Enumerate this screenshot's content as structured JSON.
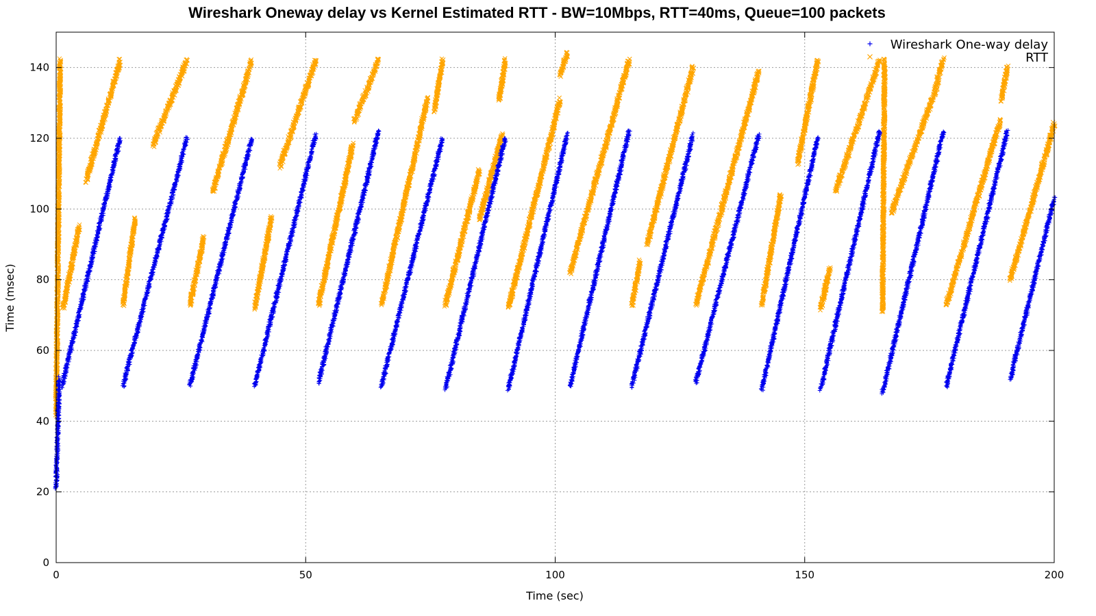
{
  "chart_data": {
    "type": "scatter",
    "title": "Wireshark Oneway delay vs Kernel Estimated RTT - BW=10Mbps, RTT=40ms, Queue=100 packets",
    "xlabel": "Time (sec)",
    "ylabel": "Time (msec)",
    "xlim": [
      0,
      200
    ],
    "ylim": [
      0,
      150
    ],
    "x_ticks": [
      0,
      50,
      100,
      150,
      200
    ],
    "y_ticks": [
      0,
      20,
      40,
      60,
      80,
      100,
      120,
      140
    ],
    "grid": true,
    "legend_position": "top-right",
    "series": [
      {
        "name": "Wireshark One-way delay",
        "marker": "+",
        "color": "#0000ee",
        "segments": [
          {
            "x0": 0.0,
            "y0": 21,
            "x1": 0.6,
            "y1": 52
          },
          {
            "x0": 1.2,
            "y0": 50,
            "x1": 12.8,
            "y1": 120
          },
          {
            "x0": 13.4,
            "y0": 50,
            "x1": 26.2,
            "y1": 120
          },
          {
            "x0": 26.8,
            "y0": 50,
            "x1": 39.2,
            "y1": 120
          },
          {
            "x0": 39.8,
            "y0": 50,
            "x1": 52.0,
            "y1": 121
          },
          {
            "x0": 52.6,
            "y0": 51,
            "x1": 64.6,
            "y1": 122
          },
          {
            "x0": 65.2,
            "y0": 50,
            "x1": 77.4,
            "y1": 120
          },
          {
            "x0": 78.0,
            "y0": 49,
            "x1": 90.0,
            "y1": 120
          },
          {
            "x0": 90.6,
            "y0": 49,
            "x1": 102.4,
            "y1": 121
          },
          {
            "x0": 103.0,
            "y0": 50,
            "x1": 114.8,
            "y1": 122
          },
          {
            "x0": 115.4,
            "y0": 50,
            "x1": 127.6,
            "y1": 121
          },
          {
            "x0": 128.2,
            "y0": 51,
            "x1": 140.8,
            "y1": 121
          },
          {
            "x0": 141.4,
            "y0": 49,
            "x1": 152.6,
            "y1": 120
          },
          {
            "x0": 153.2,
            "y0": 49,
            "x1": 165.0,
            "y1": 122
          },
          {
            "x0": 165.6,
            "y0": 48,
            "x1": 177.8,
            "y1": 122
          },
          {
            "x0": 178.4,
            "y0": 50,
            "x1": 190.6,
            "y1": 122
          },
          {
            "x0": 191.2,
            "y0": 52,
            "x1": 200.0,
            "y1": 103
          }
        ]
      },
      {
        "name": "RTT",
        "marker": "x",
        "color": "#ffa500",
        "segments": [
          {
            "x0": 0.0,
            "y0": 42,
            "x1": 0.8,
            "y1": 142
          },
          {
            "x0": 1.4,
            "y0": 72,
            "x1": 4.6,
            "y1": 95
          },
          {
            "x0": 6.0,
            "y0": 108,
            "x1": 12.8,
            "y1": 142
          },
          {
            "x0": 13.4,
            "y0": 73,
            "x1": 15.8,
            "y1": 97
          },
          {
            "x0": 19.4,
            "y0": 118,
            "x1": 26.2,
            "y1": 142
          },
          {
            "x0": 26.8,
            "y0": 73,
            "x1": 29.6,
            "y1": 92
          },
          {
            "x0": 31.4,
            "y0": 105,
            "x1": 39.2,
            "y1": 142
          },
          {
            "x0": 39.8,
            "y0": 72,
            "x1": 43.2,
            "y1": 98
          },
          {
            "x0": 44.8,
            "y0": 112,
            "x1": 52.0,
            "y1": 142
          },
          {
            "x0": 52.6,
            "y0": 73,
            "x1": 59.4,
            "y1": 118
          },
          {
            "x0": 59.8,
            "y0": 125,
            "x1": 64.6,
            "y1": 142
          },
          {
            "x0": 65.2,
            "y0": 73,
            "x1": 74.4,
            "y1": 131
          },
          {
            "x0": 75.8,
            "y0": 128,
            "x1": 77.4,
            "y1": 142
          },
          {
            "x0": 78.0,
            "y0": 73,
            "x1": 84.8,
            "y1": 111
          },
          {
            "x0": 84.8,
            "y0": 97,
            "x1": 89.4,
            "y1": 121
          },
          {
            "x0": 88.8,
            "y0": 131,
            "x1": 90.0,
            "y1": 142
          },
          {
            "x0": 90.6,
            "y0": 72,
            "x1": 101.0,
            "y1": 131
          },
          {
            "x0": 101.0,
            "y0": 138,
            "x1": 102.4,
            "y1": 144
          },
          {
            "x0": 103.0,
            "y0": 82,
            "x1": 114.8,
            "y1": 142
          },
          {
            "x0": 115.4,
            "y0": 73,
            "x1": 117.0,
            "y1": 85
          },
          {
            "x0": 118.4,
            "y0": 90,
            "x1": 127.6,
            "y1": 140
          },
          {
            "x0": 128.2,
            "y0": 73,
            "x1": 140.8,
            "y1": 139
          },
          {
            "x0": 141.4,
            "y0": 73,
            "x1": 145.2,
            "y1": 104
          },
          {
            "x0": 148.6,
            "y0": 113,
            "x1": 152.6,
            "y1": 142
          },
          {
            "x0": 153.2,
            "y0": 72,
            "x1": 155.0,
            "y1": 83
          },
          {
            "x0": 156.2,
            "y0": 105,
            "x1": 165.0,
            "y1": 142
          },
          {
            "x0": 165.6,
            "y0": 71,
            "x1": 166.0,
            "y1": 142
          },
          {
            "x0": 167.4,
            "y0": 99,
            "x1": 176.8,
            "y1": 136
          },
          {
            "x0": 176.6,
            "y0": 137,
            "x1": 177.8,
            "y1": 142
          },
          {
            "x0": 178.4,
            "y0": 73,
            "x1": 189.2,
            "y1": 125
          },
          {
            "x0": 189.4,
            "y0": 131,
            "x1": 190.6,
            "y1": 140
          },
          {
            "x0": 191.2,
            "y0": 80,
            "x1": 200.0,
            "y1": 124
          }
        ]
      }
    ]
  }
}
